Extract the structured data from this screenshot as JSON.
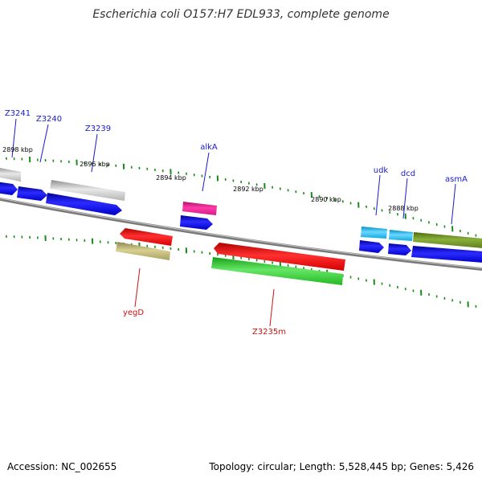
{
  "title": "Escherichia coli O157:H7 EDL933, complete genome",
  "footer": {
    "accession": "Accession: NC_002655",
    "summary": "Topology: circular; Length: 5,528,445 bp; Genes: 5,426"
  },
  "colors": {
    "backbone": "#8a8a8a",
    "tick": "#1a8a1a",
    "forward_label": "#1a1acc",
    "reverse_label": "#cc1010",
    "scale_label": "#000000"
  },
  "scale_labels": [
    "2898 kbp",
    "2896 kbp",
    "2894 kbp",
    "2892 kbp",
    "2890 kbp",
    "2888 kbp"
  ],
  "forward_labels": [
    "Z3241",
    "Z3240",
    "Z3239",
    "alkA",
    "udk",
    "dcd",
    "asmA"
  ],
  "reverse_labels": [
    "yegD",
    "Z3235m"
  ]
}
